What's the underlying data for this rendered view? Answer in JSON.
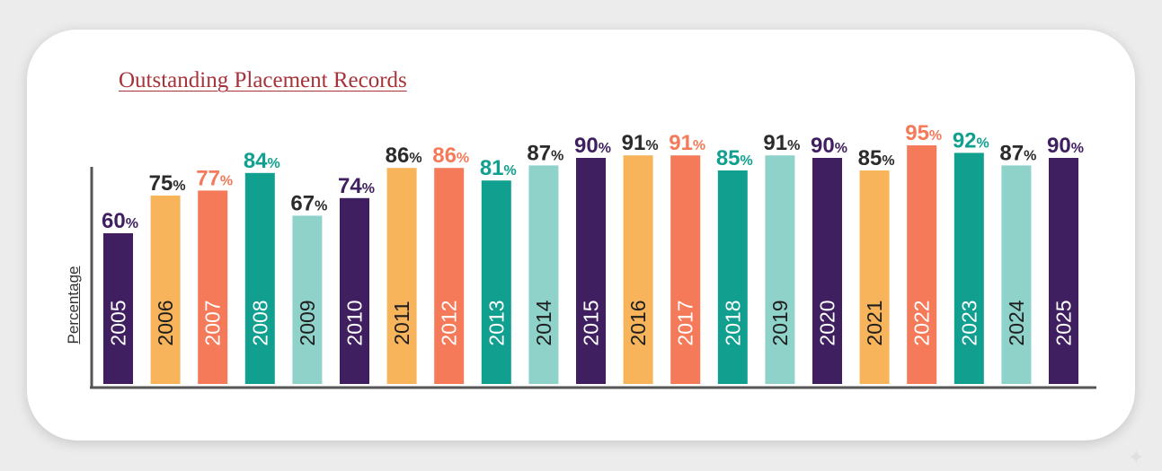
{
  "title": "Outstanding Placement Records",
  "colors": {
    "title": "#a8323a",
    "axis": "#555555",
    "purple": "#3f1f5f",
    "yellow": "#f7b45a",
    "coral": "#f47a5a",
    "teal": "#11a090",
    "mint": "#8fd2ca",
    "dark_label": "#2b2b2b"
  },
  "chart_data": {
    "type": "bar",
    "title": "Outstanding Placement Records",
    "xlabel": "",
    "ylabel": "Percentage",
    "value_suffix": "%",
    "ylim": [
      0,
      100
    ],
    "grid": false,
    "legend": "none",
    "categories": [
      "2005",
      "2006",
      "2007",
      "2008",
      "2009",
      "2010",
      "2011",
      "2012",
      "2013",
      "2014",
      "2015",
      "2016",
      "2017",
      "2018",
      "2019",
      "2020",
      "2021",
      "2022",
      "2023",
      "2024",
      "2025"
    ],
    "values": [
      60,
      75,
      77,
      84,
      67,
      74,
      86,
      86,
      81,
      87,
      90,
      91,
      91,
      85,
      91,
      90,
      85,
      95,
      92,
      87,
      90
    ],
    "bar_colors": [
      "purple",
      "yellow",
      "coral",
      "teal",
      "mint",
      "purple",
      "yellow",
      "coral",
      "teal",
      "mint",
      "purple",
      "yellow",
      "coral",
      "teal",
      "mint",
      "purple",
      "yellow",
      "coral",
      "teal",
      "mint",
      "purple"
    ],
    "label_colors": [
      "purple",
      "dark_label",
      "coral",
      "teal",
      "dark_label",
      "purple",
      "dark_label",
      "coral",
      "teal",
      "dark_label",
      "purple",
      "dark_label",
      "coral",
      "teal",
      "dark_label",
      "purple",
      "dark_label",
      "coral",
      "teal",
      "dark_label",
      "purple"
    ]
  }
}
